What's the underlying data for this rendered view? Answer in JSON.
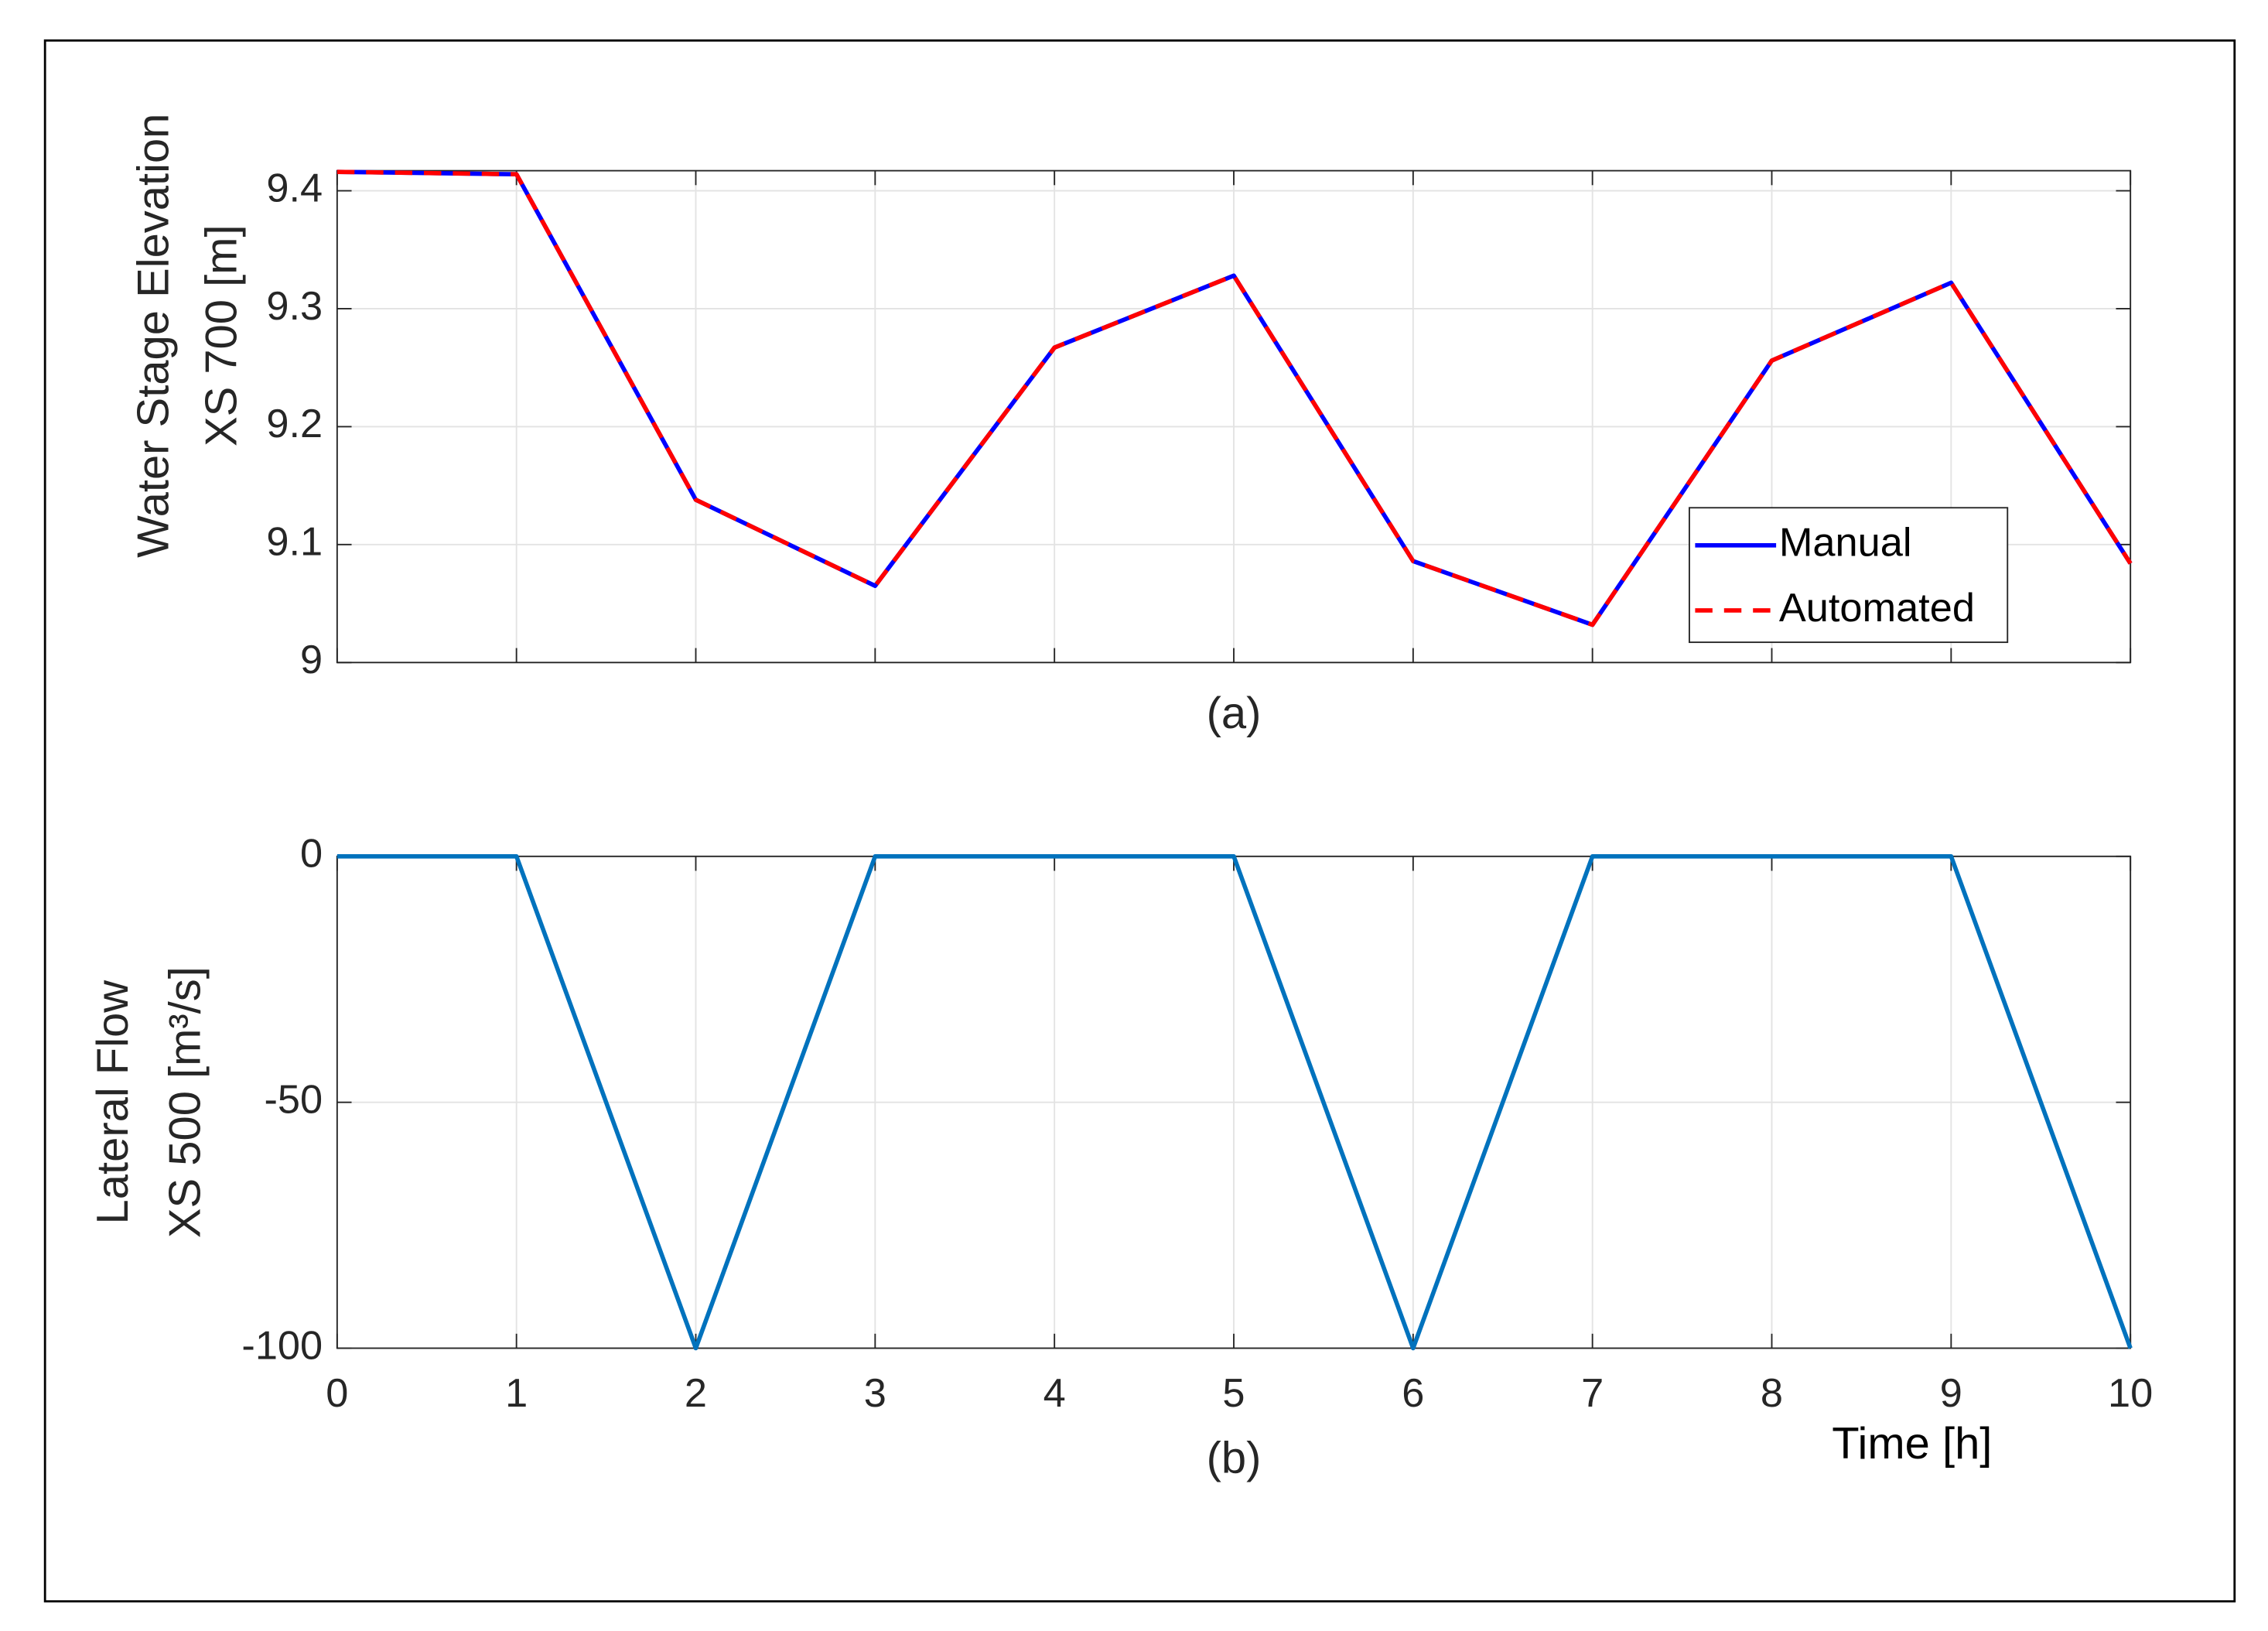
{
  "chart_data": [
    {
      "type": "line",
      "ylabel": [
        "Water Stage Elevation",
        "XS 700 [m]"
      ],
      "caption": "(a)",
      "x": [
        0,
        1,
        2,
        3,
        4,
        5,
        6,
        7,
        8,
        9,
        10
      ],
      "series": [
        {
          "name": "Manual",
          "color": "#0000ff",
          "dash": false,
          "values": [
            9.416,
            9.414,
            9.138,
            9.065,
            9.267,
            9.328,
            9.086,
            9.032,
            9.256,
            9.322,
            9.084
          ]
        },
        {
          "name": "Automated",
          "color": "#ff0000",
          "dash": true,
          "values": [
            9.416,
            9.414,
            9.138,
            9.065,
            9.267,
            9.328,
            9.086,
            9.032,
            9.256,
            9.322,
            9.084
          ]
        }
      ],
      "xlim": [
        0,
        10
      ],
      "xticks": [
        0,
        1,
        2,
        3,
        4,
        5,
        6,
        7,
        8,
        9,
        10
      ],
      "show_xtick_labels": false,
      "ylim": [
        9,
        9.417
      ],
      "yticks": [
        9,
        9.1,
        9.2,
        9.3,
        9.4
      ],
      "grid": true,
      "legend": "lower right"
    },
    {
      "type": "line",
      "ylabel": [
        "Lateral Flow",
        "XS 500 [m³/s]"
      ],
      "xlabel": "Time [h]",
      "caption": "(b)",
      "x": [
        0,
        1,
        2,
        3,
        4,
        5,
        6,
        7,
        8,
        9,
        10
      ],
      "series": [
        {
          "color": "#0072bd",
          "dash": false,
          "values": [
            0,
            0,
            -100,
            0,
            0,
            0,
            -100,
            0,
            0,
            0,
            -100
          ]
        }
      ],
      "xlim": [
        0,
        10
      ],
      "xticks": [
        0,
        1,
        2,
        3,
        4,
        5,
        6,
        7,
        8,
        9,
        10
      ],
      "show_xtick_labels": true,
      "ylim": [
        -100,
        0
      ],
      "yticks": [
        -100,
        -50,
        0
      ],
      "grid": true
    }
  ]
}
